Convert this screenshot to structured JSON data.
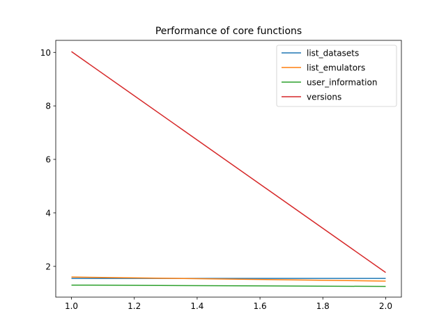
{
  "chart_data": {
    "type": "line",
    "title": "Performance of core functions",
    "xlabel": "",
    "ylabel": "",
    "xlim": [
      0.95,
      2.05
    ],
    "ylim": [
      0.85,
      10.45
    ],
    "xticks": [
      1.0,
      1.2,
      1.4,
      1.6,
      1.8,
      2.0
    ],
    "xtick_labels": [
      "1.0",
      "1.2",
      "1.4",
      "1.6",
      "1.8",
      "2.0"
    ],
    "yticks": [
      2,
      4,
      6,
      8,
      10
    ],
    "ytick_labels": [
      "2",
      "4",
      "6",
      "8",
      "10"
    ],
    "grid": false,
    "legend_position": "top-right",
    "x": [
      1.0,
      2.0
    ],
    "series": [
      {
        "name": "list_datasets",
        "color": "#1f77b4",
        "values": [
          1.55,
          1.55
        ]
      },
      {
        "name": "list_emulators",
        "color": "#ff7f0e",
        "values": [
          1.6,
          1.45
        ]
      },
      {
        "name": "user_information",
        "color": "#2ca02c",
        "values": [
          1.3,
          1.25
        ]
      },
      {
        "name": "versions",
        "color": "#d62728",
        "values": [
          10.03,
          1.77
        ]
      }
    ]
  }
}
